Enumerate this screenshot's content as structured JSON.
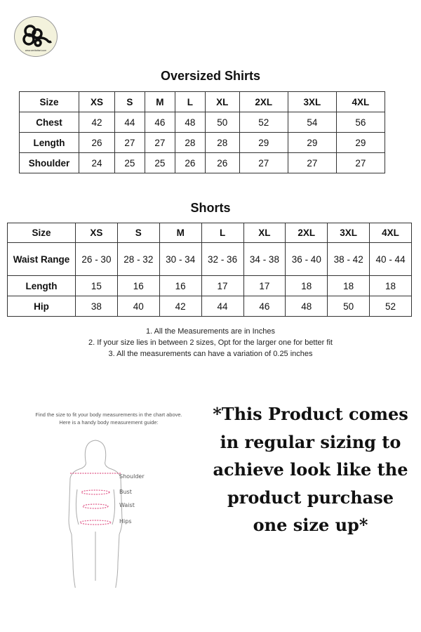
{
  "logo": {
    "text": "www.amitattari.com"
  },
  "shirts": {
    "title": "Oversized Shirts",
    "header": [
      "Size",
      "XS",
      "S",
      "M",
      "L",
      "XL",
      "2XL",
      "3XL",
      "4XL"
    ],
    "rows": [
      [
        "Chest",
        "42",
        "44",
        "46",
        "48",
        "50",
        "52",
        "54",
        "56"
      ],
      [
        "Length",
        "26",
        "27",
        "27",
        "28",
        "28",
        "29",
        "29",
        "29"
      ],
      [
        "Shoulder",
        "24",
        "25",
        "25",
        "26",
        "26",
        "27",
        "27",
        "27"
      ]
    ]
  },
  "shorts": {
    "title": "Shorts",
    "header": [
      "Size",
      "XS",
      "S",
      "M",
      "L",
      "XL",
      "2XL",
      "3XL",
      "4XL"
    ],
    "rows": [
      [
        "Waist Range",
        "26 - 30",
        "28 - 32",
        "30 - 34",
        "32 - 36",
        "34 - 38",
        "36 - 40",
        "38 - 42",
        "40 - 44"
      ],
      [
        "Length",
        "15",
        "16",
        "16",
        "17",
        "17",
        "18",
        "18",
        "18"
      ],
      [
        "Hip",
        "38",
        "40",
        "42",
        "44",
        "46",
        "48",
        "50",
        "52"
      ]
    ]
  },
  "notes": [
    "1.   All the Measurements are in Inches",
    "2.   If your size lies in between 2 sizes, Opt for the larger one for better fit",
    "3.   All the measurements can have a variation of 0.25 inches"
  ],
  "guide": {
    "line1": "Find the size to fit your body measurements in the chart above.",
    "line2": "Here is a handy body measurement guide:",
    "labels": [
      "Shoulder",
      "Bust",
      "Waist",
      "Hips"
    ]
  },
  "promo": "*This Product comes in regular sizing to achieve look like the product purchase one size up*"
}
